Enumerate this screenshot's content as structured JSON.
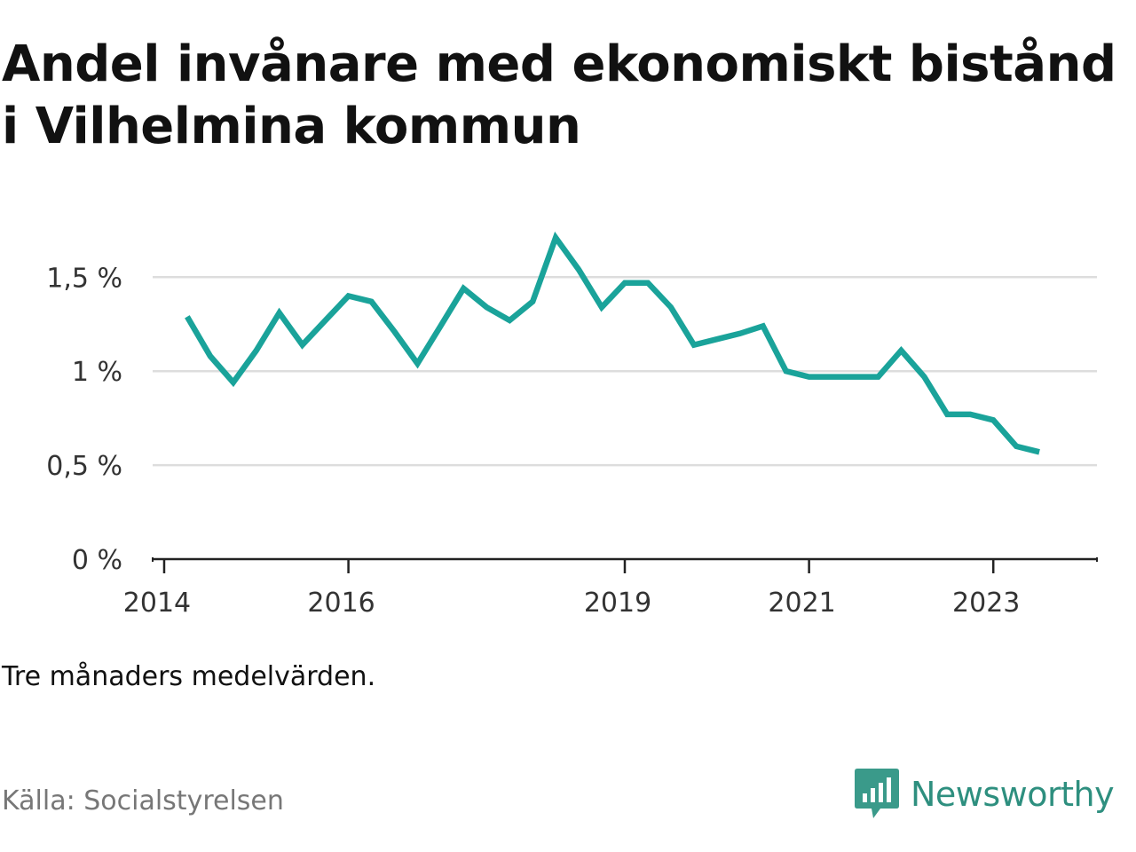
{
  "title": "Andel invånare med ekonomiskt bistånd i Vilhelmina kommun",
  "note": "Tre månaders medelvärden.",
  "source": "Källa: Socialstyrelsen",
  "brand": {
    "name": "Newsworthy",
    "logo_icon": "newsworthy-bar-chart-bubble-icon",
    "color": "#2e8f7f"
  },
  "colors": {
    "line": "#1aa39a",
    "grid": "#dddddd",
    "axis": "#222222"
  },
  "chart_data": {
    "type": "line",
    "title": "Andel invånare med ekonomiskt bistånd i Vilhelmina kommun",
    "xlabel": "",
    "ylabel": "",
    "x_ticks": [
      2014,
      2016,
      2019,
      2021,
      2023
    ],
    "y_ticks": [
      {
        "value": 0,
        "label": "0 %"
      },
      {
        "value": 0.5,
        "label": "0,5 %"
      },
      {
        "value": 1,
        "label": "1 %"
      },
      {
        "value": 1.5,
        "label": "1,5 %"
      }
    ],
    "ylim": [
      0,
      1.78
    ],
    "xlim": [
      2013.875,
      2024.125
    ],
    "grid": true,
    "series": [
      {
        "values": [
          {
            "x": 2014.25,
            "y": 1.29
          },
          {
            "x": 2014.5,
            "y": 1.08
          },
          {
            "x": 2014.75,
            "y": 0.94
          },
          {
            "x": 2015.0,
            "y": 1.11
          },
          {
            "x": 2015.25,
            "y": 1.31
          },
          {
            "x": 2015.5,
            "y": 1.14
          },
          {
            "x": 2015.75,
            "y": 1.27
          },
          {
            "x": 2016.0,
            "y": 1.4
          },
          {
            "x": 2016.25,
            "y": 1.37
          },
          {
            "x": 2016.5,
            "y": 1.21
          },
          {
            "x": 2016.75,
            "y": 1.04
          },
          {
            "x": 2017.0,
            "y": 1.24
          },
          {
            "x": 2017.25,
            "y": 1.44
          },
          {
            "x": 2017.5,
            "y": 1.34
          },
          {
            "x": 2017.75,
            "y": 1.27
          },
          {
            "x": 2018.0,
            "y": 1.37
          },
          {
            "x": 2018.25,
            "y": 1.71
          },
          {
            "x": 2018.5,
            "y": 1.54
          },
          {
            "x": 2018.75,
            "y": 1.34
          },
          {
            "x": 2019.0,
            "y": 1.47
          },
          {
            "x": 2019.25,
            "y": 1.47
          },
          {
            "x": 2019.5,
            "y": 1.34
          },
          {
            "x": 2019.75,
            "y": 1.14
          },
          {
            "x": 2020.0,
            "y": 1.17
          },
          {
            "x": 2020.25,
            "y": 1.2
          },
          {
            "x": 2020.5,
            "y": 1.24
          },
          {
            "x": 2020.75,
            "y": 1.0
          },
          {
            "x": 2021.0,
            "y": 0.97
          },
          {
            "x": 2021.25,
            "y": 0.97
          },
          {
            "x": 2021.5,
            "y": 0.97
          },
          {
            "x": 2021.75,
            "y": 0.97
          },
          {
            "x": 2022.0,
            "y": 1.11
          },
          {
            "x": 2022.25,
            "y": 0.97
          },
          {
            "x": 2022.5,
            "y": 0.77
          },
          {
            "x": 2022.75,
            "y": 0.77
          },
          {
            "x": 2023.0,
            "y": 0.74
          },
          {
            "x": 2023.25,
            "y": 0.6
          },
          {
            "x": 2023.5,
            "y": 0.57
          }
        ]
      }
    ]
  }
}
